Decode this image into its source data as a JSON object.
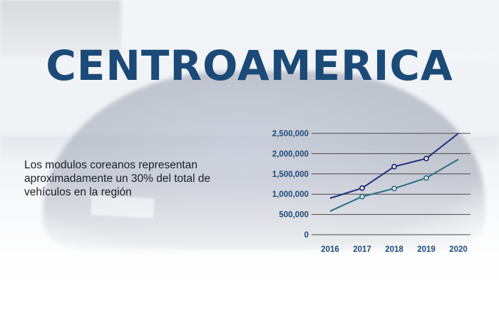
{
  "title": "CENTROAMERICA",
  "caption": "Los modulos coreanos representan aproximadamente un 30% del total de vehículos en la región",
  "colors": {
    "title": "#1c4a78",
    "series_dark": "#1f2f7a",
    "series_light": "#2a6f86",
    "grid": "#4a4a4a"
  },
  "chart_data": {
    "type": "line",
    "x": [
      "2016",
      "2017",
      "2018",
      "2019",
      "2020"
    ],
    "ylim": [
      0,
      2500000
    ],
    "yticks": [
      "0",
      "500,000",
      "1,000,000",
      "1,500,000",
      "2,000,000",
      "2,500,000"
    ],
    "ytick_values": [
      0,
      500000,
      1000000,
      1500000,
      2000000,
      2500000
    ],
    "grid": true,
    "series": [
      {
        "values": [
          900000,
          1150000,
          1680000,
          1880000,
          2500000
        ],
        "color": "#1f2f7a"
      },
      {
        "values": [
          580000,
          940000,
          1140000,
          1400000,
          1860000
        ],
        "color": "#2a6f86"
      }
    ],
    "markers_on": [
      1,
      2,
      3
    ]
  }
}
